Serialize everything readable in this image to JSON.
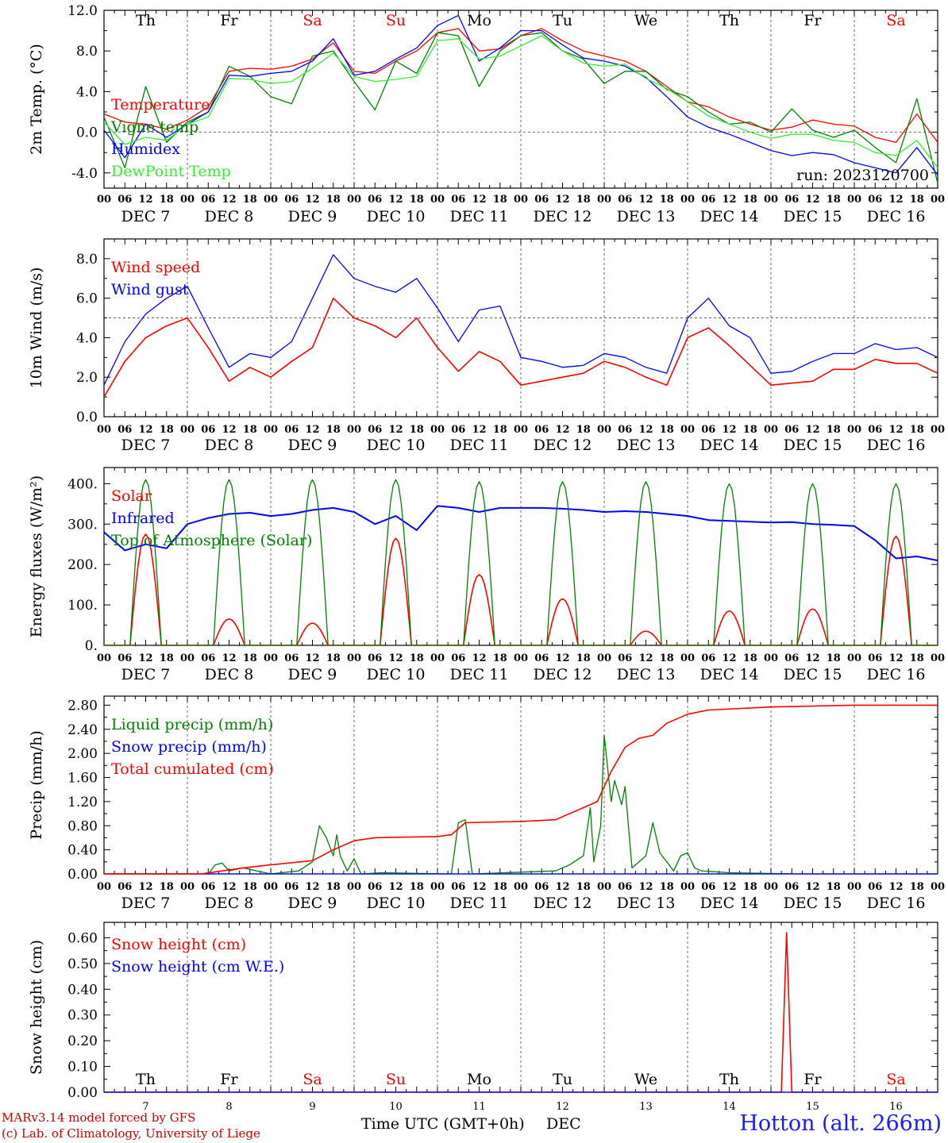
{
  "days": {
    "weekday_labels": [
      "Th",
      "Fr",
      "Sa",
      "Su",
      "Mo",
      "Tu",
      "We",
      "Th",
      "Fr",
      "Sa"
    ],
    "weekend_flags": [
      false,
      false,
      true,
      true,
      false,
      false,
      false,
      false,
      false,
      true
    ],
    "date_labels": [
      "DEC  7",
      "DEC  8",
      "DEC  9",
      "DEC 10",
      "DEC 11",
      "DEC 12",
      "DEC 13",
      "DEC 14",
      "DEC 15",
      "DEC 16"
    ],
    "day_numbers": [
      "7",
      "8",
      "9",
      "10",
      "11",
      "12",
      "13",
      "14",
      "15",
      "16"
    ],
    "hour_ticks": [
      "00",
      "06",
      "12",
      "18"
    ],
    "final_tick": "00"
  },
  "colors": {
    "red": "#ff0000",
    "green": "#008000",
    "blue": "#0000ff",
    "lightgreen": "#33ee33",
    "weekend": "#ff0000",
    "footer_blue": "#1a1aff",
    "footer_red": "#cc0000"
  },
  "footer": {
    "model": "MARv3.14 model forced by GFS",
    "copyright": "(c) Lab. of Climatology, University of Liege",
    "time_axis": "Time UTC (GMT+0h)",
    "month": "DEC",
    "station": "Hotton (alt. 266m)"
  },
  "chart_data": [
    {
      "id": "temp",
      "type": "line",
      "ylabel": "2m Temp. (°C)",
      "ylim": [
        -5.5,
        12
      ],
      "yticks": [
        -4,
        0,
        4,
        8,
        12
      ],
      "ytick_labels": [
        "-4.0",
        "0.0",
        "4.0",
        "8.0",
        "12.0"
      ],
      "reference_line": 0,
      "run_label": "run: 2023120700",
      "x_hours": [
        0,
        6,
        12,
        18,
        24,
        30,
        36,
        42,
        48,
        54,
        60,
        66,
        72,
        78,
        84,
        90,
        96,
        102,
        108,
        114,
        120,
        126,
        132,
        138,
        144,
        150,
        156,
        162,
        168,
        174,
        180,
        186,
        192,
        198,
        204,
        210,
        216,
        222,
        228,
        234,
        240
      ],
      "series": [
        {
          "name": "Temperature",
          "color": "red",
          "values": [
            1.8,
            1.0,
            0.8,
            0.3,
            1.2,
            2.5,
            6.0,
            6.3,
            6.2,
            6.5,
            7.2,
            8.8,
            6.0,
            5.8,
            7.0,
            8.0,
            9.8,
            10.2,
            8.0,
            8.2,
            9.5,
            10.2,
            9.0,
            8.0,
            7.5,
            7.0,
            6.0,
            4.5,
            3.0,
            2.5,
            1.5,
            0.8,
            0.2,
            0.5,
            1.2,
            0.8,
            0.6,
            -0.5,
            -1.0,
            1.8,
            -1.0
          ]
        },
        {
          "name": "Vigne temp",
          "color": "green",
          "values": [
            1.5,
            -3.5,
            4.5,
            -1.0,
            1.0,
            2.0,
            6.5,
            5.5,
            3.5,
            2.8,
            7.5,
            8.0,
            5.0,
            2.2,
            7.0,
            5.8,
            9.8,
            9.5,
            4.5,
            8.0,
            9.5,
            9.8,
            8.0,
            7.2,
            4.8,
            6.0,
            6.0,
            4.2,
            3.5,
            2.0,
            0.8,
            1.0,
            0.0,
            2.3,
            0.2,
            -0.5,
            0.2,
            -1.5,
            -3.0,
            3.3,
            -5.0
          ]
        },
        {
          "name": "Humidex",
          "color": "blue",
          "values": [
            0.2,
            -2.5,
            0.8,
            -0.5,
            0.8,
            2.0,
            5.6,
            5.5,
            5.8,
            6.0,
            7.0,
            9.2,
            5.6,
            6.0,
            7.2,
            8.3,
            10.5,
            11.5,
            7.0,
            8.3,
            10.0,
            10.0,
            8.6,
            7.3,
            7.0,
            6.5,
            5.4,
            3.5,
            1.5,
            0.5,
            -0.2,
            -1.0,
            -1.8,
            -2.3,
            -2.0,
            -2.2,
            -3.0,
            -3.5,
            -4.0,
            -1.5,
            -4.2
          ]
        },
        {
          "name": "DewPoint Temp",
          "color": "lightgreen",
          "values": [
            1.0,
            -1.2,
            -0.5,
            -0.8,
            0.8,
            1.5,
            5.3,
            5.2,
            4.8,
            5.0,
            6.3,
            7.8,
            5.5,
            5.0,
            5.2,
            5.5,
            9.0,
            9.2,
            7.2,
            7.5,
            8.5,
            9.5,
            8.0,
            6.8,
            6.5,
            6.7,
            5.3,
            4.3,
            3.0,
            1.6,
            0.8,
            0.0,
            -0.6,
            -0.2,
            -0.2,
            -0.8,
            -1.0,
            -2.0,
            -2.3,
            -0.8,
            -3.5
          ]
        }
      ]
    },
    {
      "id": "wind",
      "type": "line",
      "ylabel": "10m Wind (m/s)",
      "ylim": [
        0,
        9
      ],
      "yticks": [
        0,
        2,
        4,
        6,
        8
      ],
      "ytick_labels": [
        "0.0",
        "2.0",
        "4.0",
        "6.0",
        "8.0"
      ],
      "reference_line": 5,
      "x_hours": [
        0,
        6,
        12,
        18,
        24,
        30,
        36,
        42,
        48,
        54,
        60,
        66,
        72,
        78,
        84,
        90,
        96,
        102,
        108,
        114,
        120,
        126,
        132,
        138,
        144,
        150,
        156,
        162,
        168,
        174,
        180,
        186,
        192,
        198,
        204,
        210,
        216,
        222,
        228,
        234,
        240
      ],
      "series": [
        {
          "name": "Wind speed",
          "color": "red",
          "values": [
            1.0,
            2.8,
            4.0,
            4.6,
            5.0,
            3.5,
            1.8,
            2.5,
            2.0,
            2.8,
            3.5,
            6.0,
            5.0,
            4.6,
            4.0,
            5.0,
            3.5,
            2.3,
            3.3,
            2.8,
            1.6,
            1.8,
            2.0,
            2.2,
            2.8,
            2.5,
            2.0,
            1.6,
            4.0,
            4.5,
            3.6,
            2.6,
            1.6,
            1.7,
            1.8,
            2.4,
            2.4,
            2.9,
            2.7,
            2.7,
            2.2
          ]
        },
        {
          "name": "Wind gust",
          "color": "blue",
          "values": [
            1.6,
            3.8,
            5.2,
            6.0,
            6.6,
            4.5,
            2.5,
            3.2,
            3.0,
            3.8,
            6.0,
            8.2,
            7.0,
            6.6,
            6.3,
            7.0,
            5.5,
            3.8,
            5.4,
            5.6,
            3.0,
            2.8,
            2.5,
            2.6,
            3.2,
            3.0,
            2.5,
            2.2,
            5.0,
            6.0,
            4.6,
            4.0,
            2.2,
            2.3,
            2.8,
            3.2,
            3.2,
            3.7,
            3.4,
            3.5,
            3.0
          ]
        }
      ]
    },
    {
      "id": "energy",
      "type": "line",
      "ylabel": "Energy fluxes (W/m²)",
      "ylim": [
        0,
        440
      ],
      "yticks": [
        0,
        100,
        200,
        300,
        400
      ],
      "ytick_labels": [
        "0.",
        "100.",
        "200.",
        "300.",
        "400."
      ],
      "x_hours": [
        0,
        6,
        12,
        18,
        24,
        30,
        36,
        42,
        48,
        54,
        60,
        66,
        72,
        78,
        84,
        90,
        96,
        102,
        108,
        114,
        120,
        126,
        132,
        138,
        144,
        150,
        156,
        162,
        168,
        174,
        180,
        186,
        192,
        198,
        204,
        210,
        216,
        222,
        228,
        234,
        240
      ],
      "solar_hours": [
        7.5,
        16.5
      ],
      "series": [
        {
          "name": "Solar",
          "color": "red",
          "peaks": [
            275,
            65,
            55,
            265,
            175,
            115,
            35,
            85,
            90,
            270
          ]
        },
        {
          "name": "Infrared",
          "color": "blue",
          "values": [
            280,
            235,
            250,
            240,
            300,
            315,
            325,
            328,
            320,
            325,
            335,
            340,
            330,
            300,
            320,
            285,
            345,
            340,
            330,
            340,
            340,
            340,
            338,
            335,
            330,
            332,
            330,
            325,
            320,
            310,
            308,
            306,
            304,
            305,
            300,
            298,
            295,
            260,
            215,
            220,
            210
          ]
        },
        {
          "name": "Top of Atmosphere (Solar)",
          "color": "green",
          "peaks": [
            410,
            410,
            410,
            410,
            405,
            405,
            405,
            400,
            400,
            400
          ]
        }
      ]
    },
    {
      "id": "precip",
      "type": "line",
      "ylabel": "Precip (mm/h)",
      "ylim": [
        0,
        2.95
      ],
      "yticks": [
        0,
        0.4,
        0.8,
        1.2,
        1.6,
        2.0,
        2.4,
        2.8
      ],
      "ytick_labels": [
        "0.00",
        "0.40",
        "0.80",
        "1.20",
        "1.60",
        "2.00",
        "2.40",
        "2.80"
      ],
      "series": [
        {
          "name": "Liquid precip (mm/h)",
          "color": "green",
          "points": [
            [
              0,
              0
            ],
            [
              30,
              0
            ],
            [
              32,
              0.15
            ],
            [
              34,
              0.18
            ],
            [
              36,
              0.05
            ],
            [
              40,
              0.1
            ],
            [
              44,
              0.05
            ],
            [
              48,
              0
            ],
            [
              56,
              0.05
            ],
            [
              60,
              0.2
            ],
            [
              62,
              0.8
            ],
            [
              64,
              0.6
            ],
            [
              66,
              0.3
            ],
            [
              67,
              0.65
            ],
            [
              68,
              0.3
            ],
            [
              70,
              0.05
            ],
            [
              72,
              0.25
            ],
            [
              74,
              0
            ],
            [
              80,
              0.02
            ],
            [
              100,
              0
            ],
            [
              102,
              0.85
            ],
            [
              104,
              0.9
            ],
            [
              106,
              0
            ],
            [
              130,
              0.05
            ],
            [
              134,
              0.15
            ],
            [
              138,
              0.3
            ],
            [
              140,
              1.1
            ],
            [
              141,
              0.2
            ],
            [
              143,
              0.8
            ],
            [
              144,
              2.3
            ],
            [
              146,
              1.2
            ],
            [
              147,
              1.55
            ],
            [
              149,
              1.15
            ],
            [
              150,
              1.45
            ],
            [
              152,
              0.1
            ],
            [
              156,
              0.3
            ],
            [
              158,
              0.85
            ],
            [
              160,
              0.35
            ],
            [
              164,
              0.05
            ],
            [
              166,
              0.3
            ],
            [
              168,
              0.35
            ],
            [
              170,
              0.1
            ],
            [
              172,
              0.05
            ],
            [
              180,
              0.02
            ],
            [
              200,
              0
            ],
            [
              240,
              0
            ]
          ]
        },
        {
          "name": "Snow precip (mm/h)",
          "color": "blue",
          "points": [
            [
              0,
              0
            ],
            [
              240,
              0
            ]
          ]
        },
        {
          "name": "Total cumulated (cm)",
          "color": "red",
          "points": [
            [
              0,
              0
            ],
            [
              28,
              0
            ],
            [
              40,
              0.1
            ],
            [
              48,
              0.15
            ],
            [
              60,
              0.22
            ],
            [
              66,
              0.4
            ],
            [
              72,
              0.55
            ],
            [
              78,
              0.6
            ],
            [
              96,
              0.62
            ],
            [
              100,
              0.65
            ],
            [
              104,
              0.85
            ],
            [
              120,
              0.87
            ],
            [
              130,
              0.9
            ],
            [
              138,
              1.1
            ],
            [
              142,
              1.2
            ],
            [
              146,
              1.7
            ],
            [
              150,
              2.1
            ],
            [
              154,
              2.25
            ],
            [
              158,
              2.3
            ],
            [
              162,
              2.5
            ],
            [
              168,
              2.65
            ],
            [
              174,
              2.72
            ],
            [
              192,
              2.77
            ],
            [
              216,
              2.8
            ],
            [
              240,
              2.8
            ]
          ]
        }
      ]
    },
    {
      "id": "snow",
      "type": "line",
      "ylabel": "Snow height (cm)",
      "ylim": [
        0,
        0.66
      ],
      "yticks": [
        0,
        0.1,
        0.2,
        0.3,
        0.4,
        0.5,
        0.6
      ],
      "ytick_labels": [
        "0.00",
        "0.10",
        "0.20",
        "0.30",
        "0.40",
        "0.50",
        "0.60"
      ],
      "series": [
        {
          "name": "Snow height (cm)",
          "color": "red",
          "points": [
            [
              0,
              0
            ],
            [
              195,
              0
            ],
            [
              196.5,
              0.62
            ],
            [
              198,
              0
            ],
            [
              240,
              0
            ]
          ]
        },
        {
          "name": "Snow height (cm W.E.)",
          "color": "blue",
          "points": [
            [
              0,
              0
            ],
            [
              240,
              0
            ]
          ]
        }
      ]
    }
  ]
}
